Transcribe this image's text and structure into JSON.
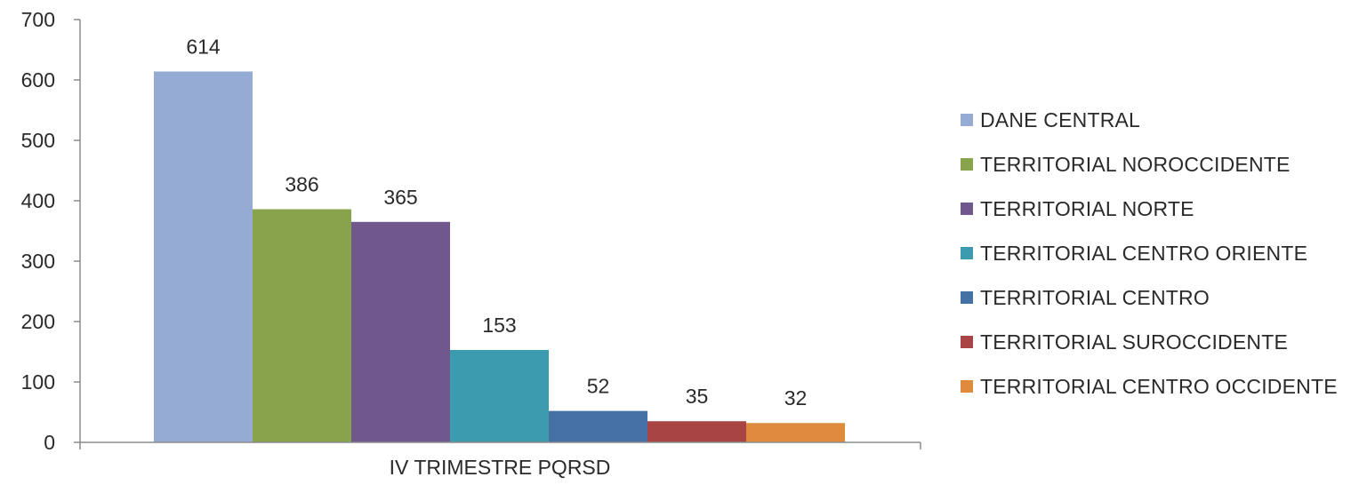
{
  "chart_data": {
    "type": "bar",
    "categories": [
      "IV TRIMESTRE PQRSD"
    ],
    "series": [
      {
        "name": "DANE CENTRAL",
        "values": [
          614
        ],
        "color": "#95abd3"
      },
      {
        "name": "TERRITORIAL NOROCCIDENTE",
        "values": [
          386
        ],
        "color": "#89a34d"
      },
      {
        "name": "TERRITORIAL NORTE",
        "values": [
          365
        ],
        "color": "#70578c"
      },
      {
        "name": "TERRITORIAL CENTRO ORIENTE",
        "values": [
          153
        ],
        "color": "#3d9bb0"
      },
      {
        "name": "TERRITORIAL CENTRO",
        "values": [
          52
        ],
        "color": "#4470a6"
      },
      {
        "name": "TERRITORIAL SUROCCIDENTE",
        "values": [
          35
        ],
        "color": "#a94444"
      },
      {
        "name": "TERRITORIAL CENTRO OCCIDENTE",
        "values": [
          32
        ],
        "color": "#df8a3d"
      }
    ],
    "yticks": [
      "0",
      "100",
      "200",
      "300",
      "400",
      "500",
      "600",
      "700"
    ],
    "ylim": [
      0,
      700
    ],
    "title": "",
    "xlabel": "",
    "ylabel": "",
    "legend": "right",
    "grid": false
  }
}
